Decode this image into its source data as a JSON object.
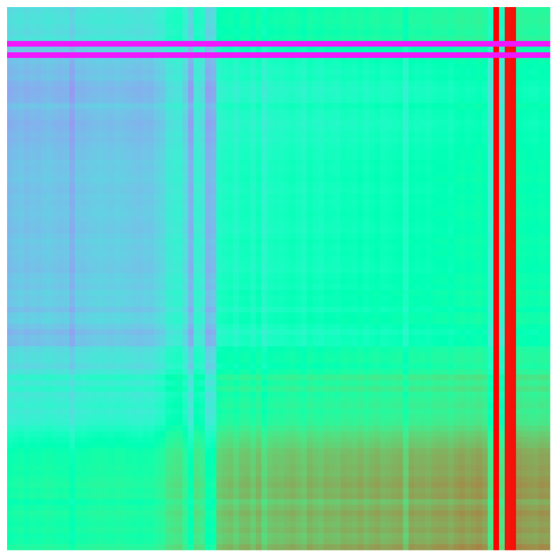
{
  "chart_data": {
    "type": "heatmap",
    "title": "",
    "xlabel": "",
    "ylabel": "",
    "rows": 96,
    "cols": 96,
    "colormap": "rainbow",
    "value_range": [
      0,
      1
    ],
    "axes_visible": false,
    "colorbar": false,
    "row_profile": [
      0.33,
      0.35,
      0.36,
      0.34,
      0.32,
      0.36,
      0.03,
      0.25,
      0.03,
      0.22,
      0.2,
      0.18,
      0.2,
      0.16,
      0.14,
      0.15,
      0.16,
      0.22,
      0.18,
      0.17,
      0.15,
      0.16,
      0.18,
      0.17,
      0.19,
      0.2,
      0.2,
      0.22,
      0.21,
      0.22,
      0.23,
      0.21,
      0.2,
      0.22,
      0.21,
      0.22,
      0.23,
      0.22,
      0.21,
      0.2,
      0.22,
      0.24,
      0.22,
      0.23,
      0.22,
      0.21,
      0.2,
      0.23,
      0.24,
      0.22,
      0.26,
      0.24,
      0.25,
      0.2,
      0.26,
      0.27,
      0.22,
      0.17,
      0.21,
      0.2,
      0.31,
      0.33,
      0.34,
      0.3,
      0.36,
      0.48,
      0.4,
      0.48,
      0.39,
      0.42,
      0.45,
      0.41,
      0.44,
      0.46,
      0.52,
      0.58,
      0.62,
      0.65,
      0.7,
      0.72,
      0.72,
      0.74,
      0.73,
      0.76,
      0.78,
      0.75,
      0.77,
      0.69,
      0.74,
      0.78,
      0.75,
      0.73,
      0.76,
      0.72,
      0.74,
      0.8
    ],
    "col_profile": [
      0.31,
      0.33,
      0.35,
      0.32,
      0.34,
      0.33,
      0.35,
      0.36,
      0.34,
      0.33,
      0.34,
      0.26,
      0.35,
      0.34,
      0.36,
      0.37,
      0.38,
      0.37,
      0.36,
      0.38,
      0.37,
      0.36,
      0.35,
      0.34,
      0.36,
      0.35,
      0.4,
      0.42,
      0.52,
      0.54,
      0.56,
      0.45,
      0.27,
      0.55,
      0.51,
      0.28,
      0.31,
      0.65,
      0.68,
      0.7,
      0.65,
      0.71,
      0.72,
      0.66,
      0.73,
      0.62,
      0.69,
      0.71,
      0.7,
      0.72,
      0.74,
      0.71,
      0.68,
      0.75,
      0.72,
      0.7,
      0.74,
      0.73,
      0.72,
      0.76,
      0.75,
      0.74,
      0.77,
      0.73,
      0.76,
      0.78,
      0.74,
      0.75,
      0.77,
      0.78,
      0.66,
      0.79,
      0.77,
      0.78,
      0.76,
      0.79,
      0.8,
      0.8,
      0.77,
      0.81,
      0.83,
      0.8,
      0.82,
      0.84,
      0.8,
      0.55,
      1.0,
      0.55,
      0.97,
      0.98,
      0.84,
      0.82,
      0.81,
      0.8,
      0.83,
      0.82
    ]
  }
}
